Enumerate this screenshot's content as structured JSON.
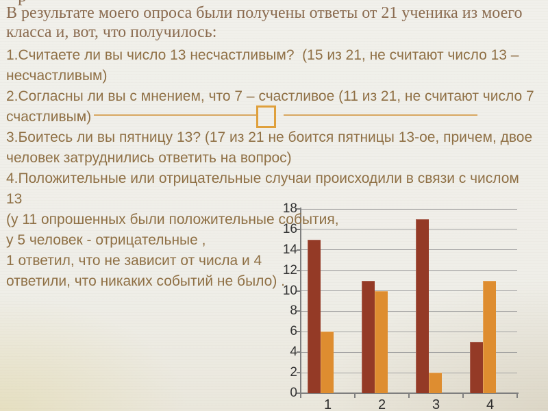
{
  "slide": {
    "cutoff_fragment": "р",
    "intro_lines": [
      "В результате моего опроса были получены ответы от 21 ученика из моего",
      "класса и, вот, что получилось:"
    ],
    "body_lines": [
      "1.Считаете ли вы число 13 несчастливым?  (15 из 21, не считают число 13 –",
      "несчастливым)",
      "2.Согласны ли вы с мнением, что 7 – счастливое (11 из 21, не считают число 7",
      "счастливым)",
      "3.Боитесь ли вы пятницу 13? (17 из 21 не боится пятницы 13-ое, причем, двое",
      "человек затруднились ответить на вопрос)",
      "4.Положительные или отрицательные случаи происходили в связи с числом",
      "13",
      "(у 11 опрошенных были положительные события,",
      "у 5 человек - отрицательные ,",
      "1 ответил, что не зависит от числа и 4",
      "ответили, что никаких событий не было) ."
    ]
  },
  "chart_data": {
    "type": "bar",
    "title": "",
    "xlabel": "",
    "ylabel": "",
    "categories": [
      "1",
      "2",
      "3",
      "4"
    ],
    "series": [
      {
        "name": "series-1-dark-red",
        "color": "#943A26",
        "values": [
          15,
          11,
          17,
          5
        ]
      },
      {
        "name": "series-2-orange",
        "color": "#DE8D30",
        "values": [
          6,
          10,
          2,
          11
        ]
      }
    ],
    "ylim": [
      0,
      18
    ],
    "ytick_step": 2,
    "grid": true,
    "legend_position": "none"
  },
  "colors": {
    "background": "#F0EFEA",
    "intro_text": "#8A6B4F",
    "body_text": "#8F7045",
    "axis_label": "#333333",
    "gridline": "#9E9E9E",
    "axis": "#7F7F7F",
    "decor_line": "#D8A761",
    "decor_square_border": "#DFA03C"
  }
}
